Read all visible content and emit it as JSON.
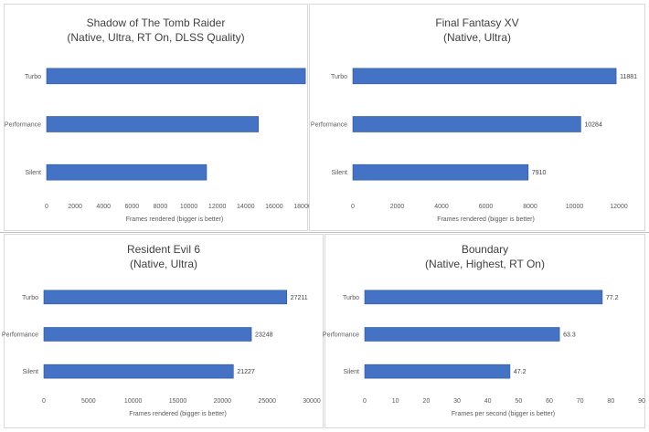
{
  "colors": {
    "bar": "#4472c4",
    "bar_edge": "#2f5597",
    "gridline": "#d9d9d9"
  },
  "chart_data": [
    {
      "type": "bar",
      "orientation": "horizontal",
      "title": "Shadow of The Tomb Raider",
      "subtitle": "(Native, Ultra, RT On, DLSS Quality)",
      "categories": [
        "Turbo",
        "Performance",
        "Silent"
      ],
      "values": [
        18200,
        14900,
        11250
      ],
      "value_labels": [],
      "xlabel": "Frames rendered (bigger is better)",
      "xlim": [
        0,
        18000
      ],
      "xticks": [
        "0",
        "2000",
        "4000",
        "6000",
        "8000",
        "10000",
        "12000",
        "14000",
        "16000",
        "18000"
      ],
      "grid": false
    },
    {
      "type": "bar",
      "orientation": "horizontal",
      "title": "Final Fantasy XV",
      "subtitle": "(Native, Ultra)",
      "categories": [
        "Turbo",
        "Performance",
        "Silent"
      ],
      "values": [
        11881,
        10284,
        7910
      ],
      "value_labels": [
        "11881",
        "10284",
        "7910"
      ],
      "xlabel": "Frames rendered (bigger is better)",
      "xlim": [
        0,
        12000
      ],
      "xticks": [
        "0",
        "2000",
        "4000",
        "6000",
        "8000",
        "10000",
        "12000"
      ],
      "grid": false
    },
    {
      "type": "bar",
      "orientation": "horizontal",
      "title": "Resident Evil 6",
      "subtitle": "(Native, Ultra)",
      "categories": [
        "Turbo",
        "Performance",
        "Silent"
      ],
      "values": [
        27211,
        23248,
        21227
      ],
      "value_labels": [
        "27211",
        "23248",
        "21227"
      ],
      "xlabel": "Frames rendered (bigger is better)",
      "xlim": [
        0,
        30000
      ],
      "xticks": [
        "0",
        "5000",
        "10000",
        "15000",
        "20000",
        "25000",
        "30000"
      ],
      "grid": false
    },
    {
      "type": "bar",
      "orientation": "horizontal",
      "title": "Boundary",
      "subtitle": "(Native, Highest, RT On)",
      "categories": [
        "Turbo",
        "Performance",
        "Silent"
      ],
      "values": [
        77.2,
        63.3,
        47.2
      ],
      "value_labels": [
        "77.2",
        "63.3",
        "47.2"
      ],
      "xlabel": "Frames per second (bigger is better)",
      "xlim": [
        0,
        90
      ],
      "xticks": [
        "0",
        "10",
        "20",
        "30",
        "40",
        "50",
        "60",
        "70",
        "80",
        "90"
      ],
      "grid": false
    }
  ]
}
